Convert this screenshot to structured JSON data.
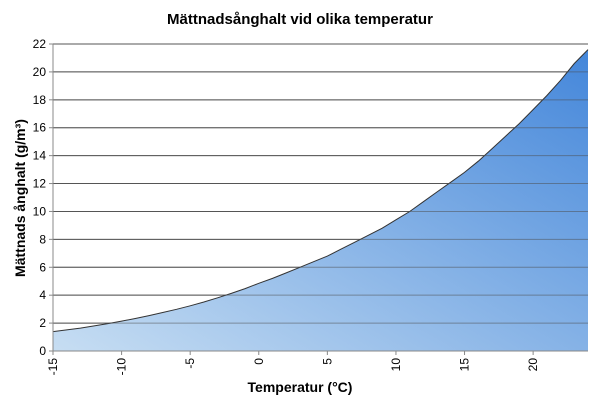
{
  "chart_data": {
    "type": "area",
    "title": "Mättnadsånghalt vid olika temperatur",
    "xlabel": "Temperatur (°C)",
    "ylabel": "Mättnads ånghalt (g/m³)",
    "xlim": [
      -15,
      24
    ],
    "ylim": [
      0,
      22
    ],
    "xticks": [
      -15,
      -10,
      -5,
      0,
      5,
      10,
      15,
      20
    ],
    "yticks": [
      0,
      2,
      4,
      6,
      8,
      10,
      12,
      14,
      16,
      18,
      20,
      22
    ],
    "grid": "horizontal",
    "legend": "none",
    "colors": {
      "fill_light": "#c4dcf2",
      "fill_dark": "#3a80d8",
      "line": "#333333",
      "grid": "#555555"
    },
    "x": [
      -15,
      -14,
      -13,
      -12,
      -11,
      -10,
      -9,
      -8,
      -7,
      -6,
      -5,
      -4,
      -3,
      -2,
      -1,
      0,
      1,
      2,
      3,
      4,
      5,
      6,
      7,
      8,
      9,
      10,
      11,
      12,
      13,
      14,
      15,
      16,
      17,
      18,
      19,
      20,
      21,
      22,
      23,
      24
    ],
    "y": [
      1.39,
      1.51,
      1.64,
      1.8,
      1.96,
      2.14,
      2.33,
      2.54,
      2.76,
      2.99,
      3.24,
      3.51,
      3.81,
      4.13,
      4.47,
      4.85,
      5.2,
      5.6,
      6.0,
      6.4,
      6.8,
      7.3,
      7.8,
      8.3,
      8.8,
      9.4,
      10.0,
      10.7,
      11.4,
      12.1,
      12.8,
      13.6,
      14.5,
      15.4,
      16.3,
      17.3,
      18.3,
      19.4,
      20.6,
      21.6
    ]
  }
}
